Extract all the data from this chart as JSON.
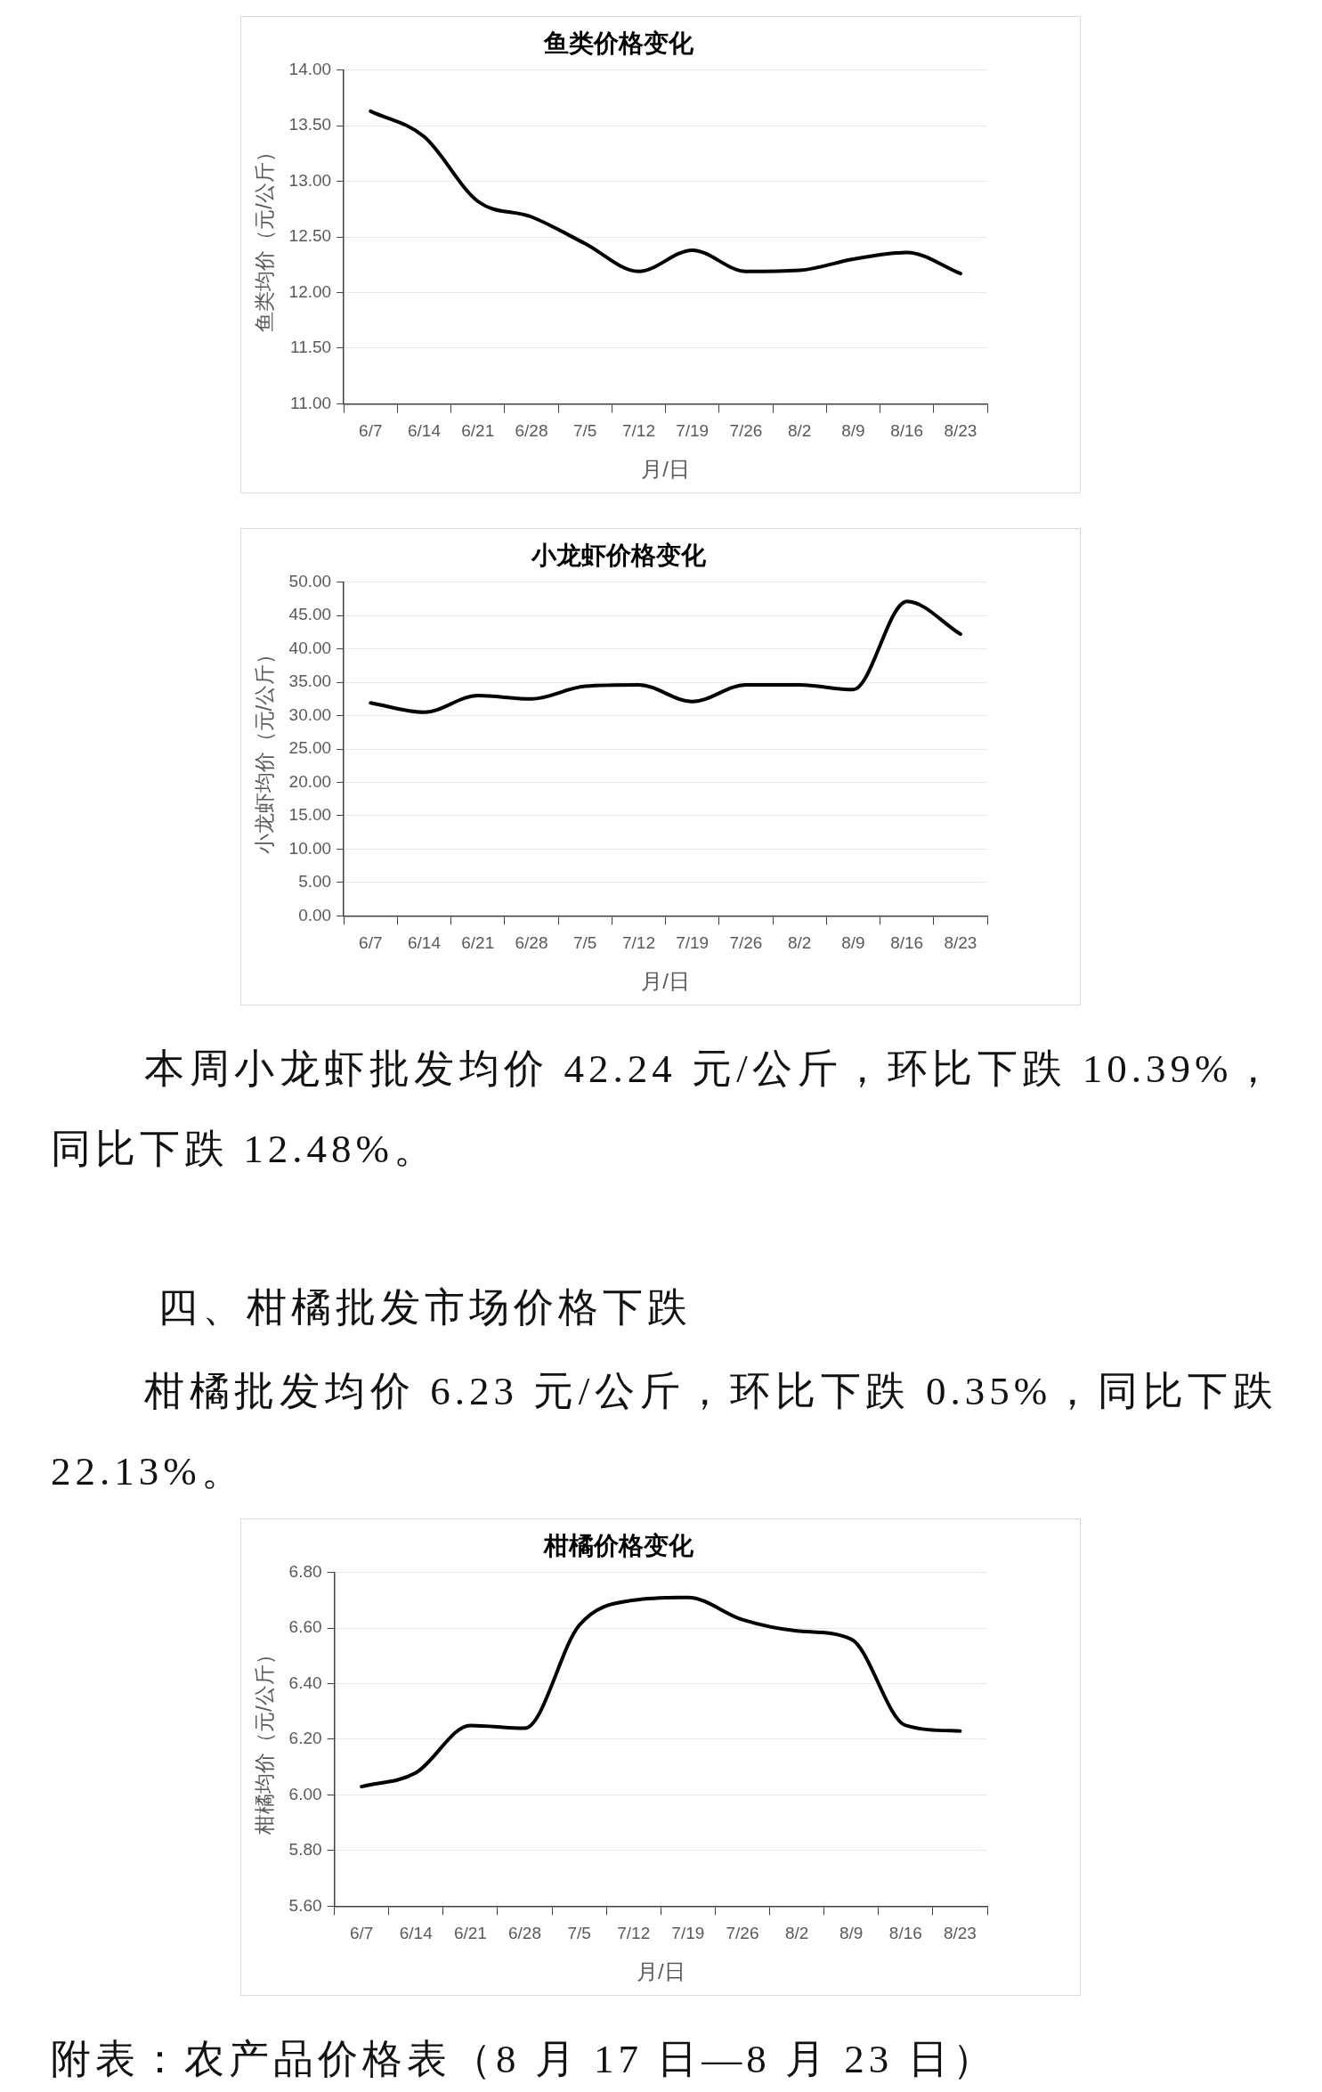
{
  "chart_data": [
    {
      "type": "line",
      "title": "鱼类价格变化",
      "xlabel": "月/日",
      "ylabel": "鱼类均价（元/公斤）",
      "categories": [
        "6/7",
        "6/14",
        "6/21",
        "6/28",
        "7/5",
        "7/12",
        "7/19",
        "7/26",
        "8/2",
        "8/9",
        "8/16",
        "8/23"
      ],
      "values": [
        13.63,
        13.4,
        12.82,
        12.68,
        12.44,
        12.19,
        12.38,
        12.19,
        12.2,
        12.3,
        12.36,
        12.17
      ],
      "color": "#000000",
      "marker": "none",
      "line_style": "solid",
      "grid": "y",
      "ylim": [
        11,
        14
      ],
      "yticks": [
        {
          "value": 11,
          "label": "11.00"
        },
        {
          "value": 11.5,
          "label": "11.50"
        },
        {
          "value": 12,
          "label": "12.00"
        },
        {
          "value": 12.5,
          "label": "12.50"
        },
        {
          "value": 13,
          "label": "13.00"
        },
        {
          "value": 13.5,
          "label": "13.50"
        },
        {
          "value": 14,
          "label": "14.00"
        }
      ]
    },
    {
      "type": "line",
      "title": "小龙虾价格变化",
      "xlabel": "月/日",
      "ylabel": "小龙虾均价（元/公斤）",
      "categories": [
        "6/7",
        "6/14",
        "6/21",
        "6/28",
        "7/5",
        "7/12",
        "7/19",
        "7/26",
        "8/2",
        "8/9",
        "8/16",
        "8/23"
      ],
      "values": [
        31.9,
        30.5,
        33.0,
        32.5,
        34.4,
        34.6,
        32.1,
        34.6,
        34.6,
        33.9,
        47.1,
        42.2
      ],
      "color": "#000000",
      "marker": "none",
      "line_style": "solid",
      "grid": "y",
      "ylim": [
        0,
        50
      ],
      "yticks": [
        {
          "value": 0,
          "label": "0.00"
        },
        {
          "value": 5,
          "label": "5.00"
        },
        {
          "value": 10,
          "label": "10.00"
        },
        {
          "value": 15,
          "label": "15.00"
        },
        {
          "value": 20,
          "label": "20.00"
        },
        {
          "value": 25,
          "label": "25.00"
        },
        {
          "value": 30,
          "label": "30.00"
        },
        {
          "value": 35,
          "label": "35.00"
        },
        {
          "value": 40,
          "label": "40.00"
        },
        {
          "value": 45,
          "label": "45.00"
        },
        {
          "value": 50,
          "label": "50.00"
        }
      ],
      "annotations": [
        "本周小龙虾批发均价 42.24 元/公斤，环比下跌 10.39%，同比下跌 12.48%。",
        "四、柑橘批发市场价格下跌",
        "柑橘批发均价 6.23 元/公斤，环比下跌 0.35%，同比下跌 22.13%。"
      ]
    },
    {
      "type": "line",
      "title": "柑橘价格变化",
      "xlabel": "月/日",
      "ylabel": "柑橘均价（元/公斤）",
      "categories": [
        "6/7",
        "6/14",
        "6/21",
        "6/28",
        "7/5",
        "7/12",
        "7/19",
        "7/26",
        "8/2",
        "8/9",
        "8/16",
        "8/23"
      ],
      "values": [
        6.03,
        6.08,
        6.25,
        6.24,
        6.61,
        6.7,
        6.71,
        6.63,
        6.59,
        6.56,
        6.25,
        6.23
      ],
      "color": "#000000",
      "marker": "none",
      "line_style": "solid",
      "grid": "y",
      "ylim": [
        5.6,
        6.8
      ],
      "yticks": [
        {
          "value": 5.6,
          "label": "5.60"
        },
        {
          "value": 5.8,
          "label": "5.80"
        },
        {
          "value": 6,
          "label": "6.00"
        },
        {
          "value": 6.2,
          "label": "6.20"
        },
        {
          "value": 6.4,
          "label": "6.40"
        },
        {
          "value": 6.6,
          "label": "6.60"
        },
        {
          "value": 6.8,
          "label": "6.80"
        }
      ],
      "annotations": [
        "附表：农产品价格表（8 月 17 日—8 月 23 日）"
      ]
    }
  ]
}
